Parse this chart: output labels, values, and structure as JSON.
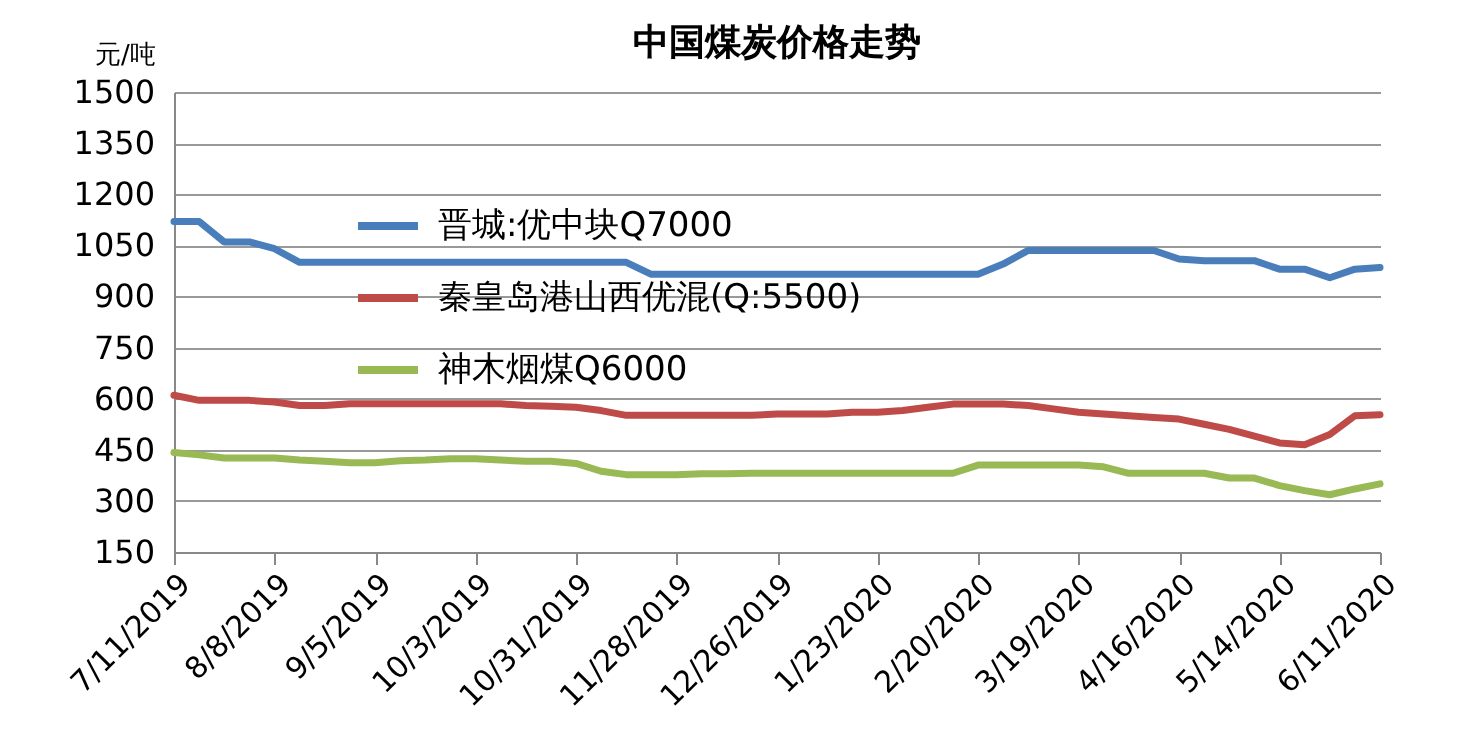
{
  "chart_data": {
    "type": "line",
    "title": "中国煤炭价格走势",
    "ylabel": "元/吨",
    "x": [
      "2019-07-11",
      "2019-07-18",
      "2019-07-25",
      "2019-08-01",
      "2019-08-08",
      "2019-08-15",
      "2019-08-22",
      "2019-08-29",
      "2019-09-05",
      "2019-09-12",
      "2019-09-19",
      "2019-09-26",
      "2019-10-03",
      "2019-10-10",
      "2019-10-17",
      "2019-10-24",
      "2019-10-31",
      "2019-11-07",
      "2019-11-14",
      "2019-11-21",
      "2019-11-28",
      "2019-12-05",
      "2019-12-12",
      "2019-12-19",
      "2019-12-26",
      "2020-01-02",
      "2020-01-09",
      "2020-01-16",
      "2020-01-23",
      "2020-01-30",
      "2020-02-06",
      "2020-02-13",
      "2020-02-20",
      "2020-02-27",
      "2020-03-05",
      "2020-03-12",
      "2020-03-19",
      "2020-03-26",
      "2020-04-02",
      "2020-04-09",
      "2020-04-16",
      "2020-04-23",
      "2020-04-30",
      "2020-05-07",
      "2020-05-14",
      "2020-05-21",
      "2020-05-28",
      "2020-06-04",
      "2020-06-11"
    ],
    "series": [
      {
        "name": "晋城:优中块Q7000",
        "color": "#4a7ebb",
        "values": [
          1120,
          1120,
          1060,
          1060,
          1040,
          1000,
          1000,
          1000,
          1000,
          1000,
          1000,
          1000,
          1000,
          1000,
          1000,
          1000,
          1000,
          1000,
          1000,
          965,
          965,
          965,
          965,
          965,
          965,
          965,
          965,
          965,
          965,
          965,
          965,
          965,
          965,
          995,
          1035,
          1035,
          1035,
          1035,
          1035,
          1035,
          1010,
          1005,
          1005,
          1005,
          980,
          980,
          955,
          980,
          985
        ]
      },
      {
        "name": "秦皇岛港山西优混(Q:5500)",
        "color": "#be4b48",
        "values": [
          610,
          595,
          595,
          595,
          590,
          580,
          580,
          585,
          585,
          585,
          585,
          585,
          585,
          585,
          580,
          578,
          575,
          565,
          551,
          551,
          551,
          551,
          551,
          551,
          555,
          555,
          555,
          560,
          560,
          565,
          575,
          584,
          584,
          584,
          580,
          570,
          560,
          555,
          550,
          545,
          540,
          525,
          510,
          490,
          470,
          465,
          495,
          550,
          553
        ]
      },
      {
        "name": "神木烟煤Q6000",
        "color": "#98b954",
        "values": [
          442,
          435,
          426,
          426,
          426,
          420,
          416,
          412,
          412,
          418,
          420,
          424,
          424,
          420,
          416,
          416,
          410,
          387,
          377,
          377,
          377,
          380,
          380,
          381,
          381,
          381,
          381,
          381,
          381,
          381,
          381,
          381,
          405,
          405,
          405,
          405,
          405,
          400,
          381,
          381,
          381,
          381,
          367,
          367,
          345,
          330,
          318,
          335,
          350
        ]
      }
    ],
    "xlim": [
      "2019-07-11",
      "2020-06-11"
    ],
    "xticks": [
      {
        "value": "2019-07-11",
        "label": "7/11/2019"
      },
      {
        "value": "2019-08-08",
        "label": "8/8/2019"
      },
      {
        "value": "2019-09-05",
        "label": "9/5/2019"
      },
      {
        "value": "2019-10-03",
        "label": "10/3/2019"
      },
      {
        "value": "2019-10-31",
        "label": "10/31/2019"
      },
      {
        "value": "2019-11-28",
        "label": "11/28/2019"
      },
      {
        "value": "2019-12-26",
        "label": "12/26/2019"
      },
      {
        "value": "2020-01-23",
        "label": "1/23/2020"
      },
      {
        "value": "2020-02-20",
        "label": "2/20/2020"
      },
      {
        "value": "2020-03-19",
        "label": "3/19/2020"
      },
      {
        "value": "2020-04-16",
        "label": "4/16/2020"
      },
      {
        "value": "2020-05-14",
        "label": "5/14/2020"
      },
      {
        "value": "2020-06-11",
        "label": "6/11/2020"
      }
    ],
    "ylim": [
      150,
      1500
    ],
    "yticks": [
      150,
      300,
      450,
      600,
      750,
      900,
      1050,
      1200,
      1350,
      1500
    ],
    "grid": "y",
    "legend": "top left",
    "marker": "none",
    "line_style": "solid"
  }
}
